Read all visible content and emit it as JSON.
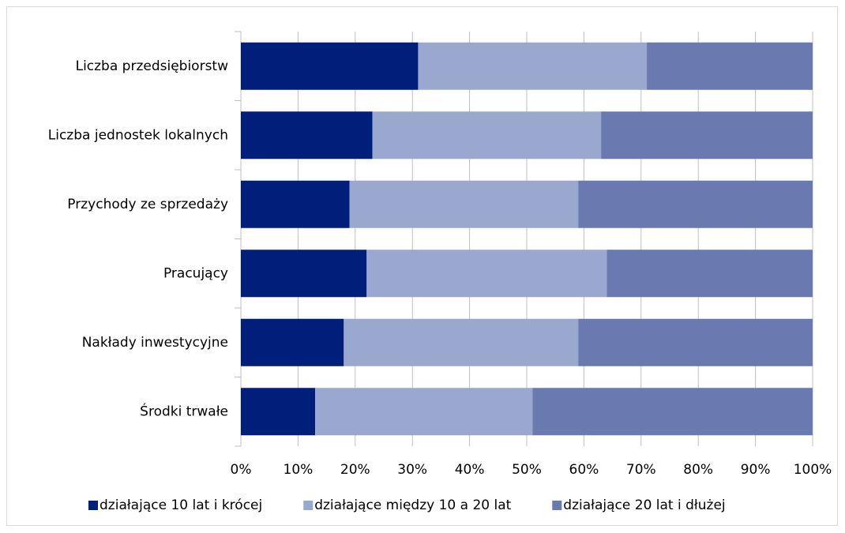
{
  "chart_data": {
    "type": "stacked_barh",
    "categories": [
      "Liczba przedsiębiorstw",
      "Liczba jednostek lokalnych",
      "Przychody ze sprzedaży",
      "Pracujący",
      "Nakłady inwestycyjne",
      "Środki trwałe"
    ],
    "series": [
      {
        "name": "działające 10 lat i krócej",
        "color": "#001f7a",
        "values": [
          31,
          23,
          19,
          22,
          18,
          13
        ]
      },
      {
        "name": "działające między 10 a 20 lat",
        "color": "#9aa8cf",
        "values": [
          40,
          40,
          40,
          42,
          41,
          38
        ]
      },
      {
        "name": "działające 20 lat i dłużej",
        "color": "#6a7ab0",
        "values": [
          29,
          37,
          41,
          36,
          41,
          49
        ]
      }
    ],
    "xlim": [
      0,
      100
    ],
    "xticks": [
      {
        "value": 0,
        "label": "0%"
      },
      {
        "value": 10,
        "label": "10%"
      },
      {
        "value": 20,
        "label": "20%"
      },
      {
        "value": 30,
        "label": "30%"
      },
      {
        "value": 40,
        "label": "40%"
      },
      {
        "value": 50,
        "label": "50%"
      },
      {
        "value": 60,
        "label": "60%"
      },
      {
        "value": 70,
        "label": "70%"
      },
      {
        "value": 80,
        "label": "80%"
      },
      {
        "value": 90,
        "label": "90%"
      },
      {
        "value": 100,
        "label": "100%"
      }
    ],
    "grid": true,
    "legend": "bottom"
  }
}
